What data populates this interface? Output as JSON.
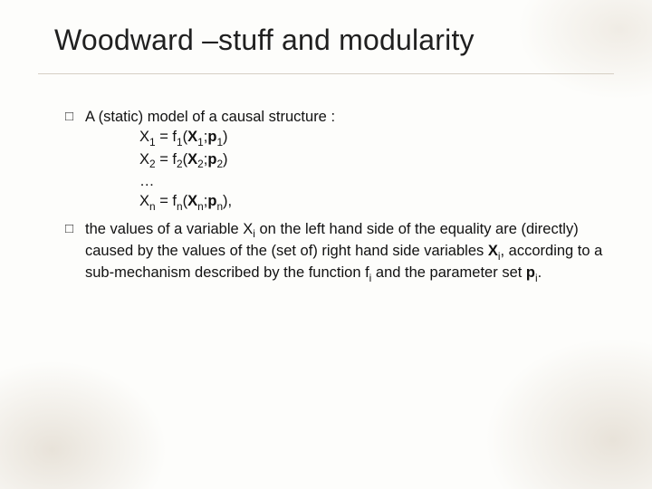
{
  "slide": {
    "title": "Woodward –stuff and modularity",
    "bullets": [
      {
        "marker": "□",
        "lead": "A (static) model of a causal structure :",
        "equations": [
          {
            "html": "X<sub>1</sub> = f<sub>1</sub>(<b>X</b><sub>1</sub>;<b>p</b><sub>1</sub>)"
          },
          {
            "html": "X<sub>2</sub> = f<sub>2</sub>(<b>X</b><sub>2</sub>;<b>p</b><sub>2</sub>)"
          },
          {
            "html": "…"
          },
          {
            "html": "X<sub>n</sub> = f<sub>n</sub>(<b>X</b><sub>n</sub>;<b>p</b><sub>n</sub>),"
          }
        ]
      },
      {
        "marker": "□",
        "html": "the values of a variable X<sub>i</sub> on the left hand side of the equality are (directly) caused by the values of the (set of) right hand side variables <b>X</b><sub>i</sub>, according to a sub-mechanism described by the function f<sub>i</sub> and the parameter set <b>p</b><sub>i</sub>."
      }
    ]
  }
}
